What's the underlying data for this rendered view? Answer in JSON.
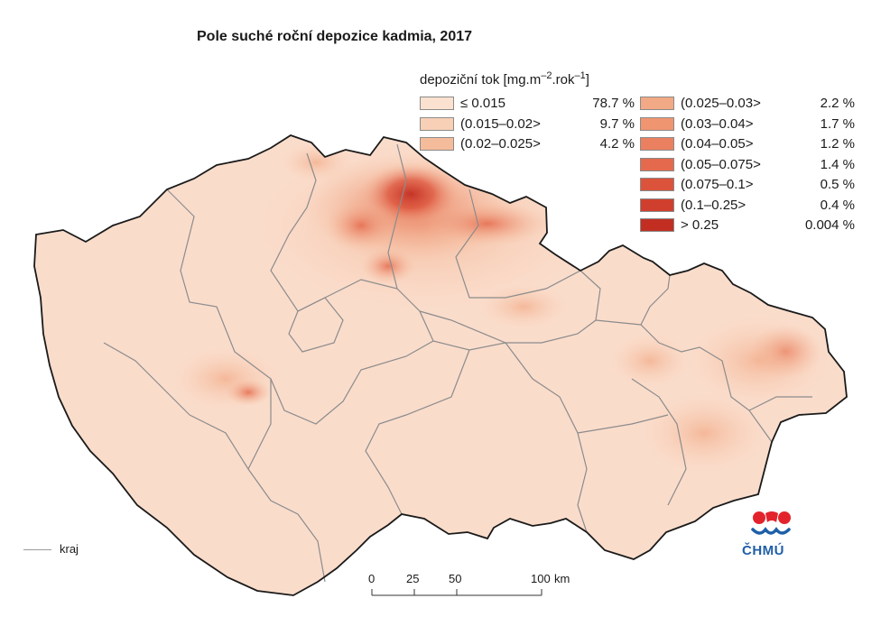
{
  "title": "Pole suché roční depozice kadmia, 2017",
  "legend": {
    "title_prefix": "depoziční tok [mg.m",
    "title_exp1": "–2",
    "title_mid": ".rok",
    "title_exp2": "–1",
    "title_suffix": "]",
    "left": [
      {
        "label": "≤ 0.015",
        "pct": "78.7 %",
        "color": "#fbe1cf"
      },
      {
        "label": "(0.015–0.02>",
        "pct": "9.7 %",
        "color": "#f8d0b6"
      },
      {
        "label": "(0.02–0.025>",
        "pct": "4.2 %",
        "color": "#f5bc9b"
      }
    ],
    "right": [
      {
        "label": "(0.025–0.03>",
        "pct": "2.2 %",
        "color": "#f2a985"
      },
      {
        "label": "(0.03–0.04>",
        "pct": "1.7 %",
        "color": "#ef9570"
      },
      {
        "label": "(0.04–0.05>",
        "pct": "1.2 %",
        "color": "#eb8060"
      },
      {
        "label": "(0.05–0.075>",
        "pct": "1.4 %",
        "color": "#e56a4d"
      },
      {
        "label": "(0.075–0.1>",
        "pct": "0.5 %",
        "color": "#dc533b"
      },
      {
        "label": "(0.1–0.25>",
        "pct": "0.4 %",
        "color": "#d03f2d"
      },
      {
        "label": "> 0.25",
        "pct": "0.004 %",
        "color": "#c22f22"
      }
    ]
  },
  "scale_bar": {
    "ticks": [
      "0",
      "25",
      "50",
      "100"
    ],
    "unit": "km"
  },
  "kraj_label": "kraj",
  "logo_text": "ČHMÚ",
  "colors": {
    "base": "#fadccb",
    "border": "#1a1a1a",
    "kraj_line": "#8c8c8c",
    "logo_red": "#e3232b",
    "logo_blue": "#1f5fa8"
  }
}
